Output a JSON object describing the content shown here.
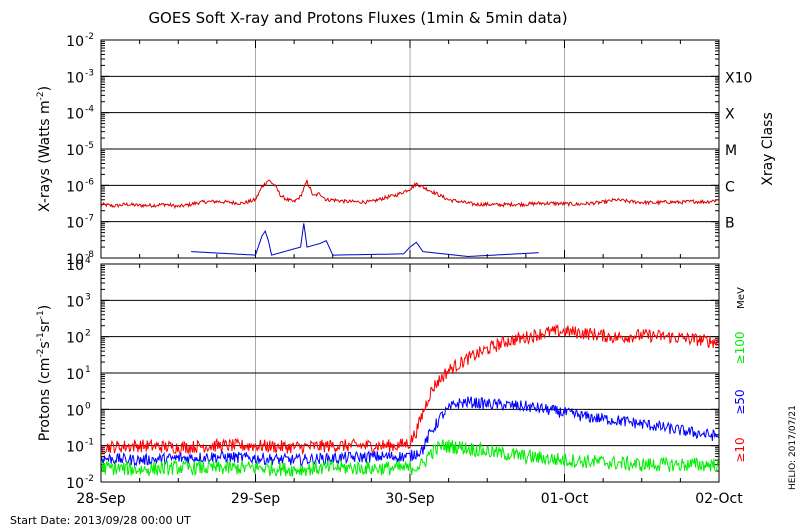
{
  "title": "GOES Soft X-ray and Protons Fluxes   (1min & 5min data)",
  "start_date_label": "Start Date: 2013/09/28 00:00 UT",
  "credit": "HELIO: 2017/07/21",
  "colors": {
    "xray_long": "#dd0000",
    "xray_short": "#0000cc",
    "proton_10": "#ff0000",
    "proton_50": "#0000ff",
    "proton_100": "#00ee00",
    "grid": "#aaaaaa"
  },
  "chart_data": [
    {
      "type": "line",
      "panel": "xray",
      "title": "GOES Soft X-ray and Protons Fluxes   (1min & 5min data)",
      "ylabel_main": "X-rays (Watts m",
      "ylabel_sup": "-2",
      "ylabel_close": ")",
      "yscale": "log",
      "ylim": [
        1e-08,
        0.01
      ],
      "xlim": [
        "2013-09-28",
        "2013-10-02"
      ],
      "xticks": [
        {
          "value": "2013-09-28",
          "label": "28-Sep"
        },
        {
          "value": "2013-09-29",
          "label": "29-Sep"
        },
        {
          "value": "2013-09-30",
          "label": "30-Sep"
        },
        {
          "value": "2013-10-01",
          "label": "01-Oct"
        },
        {
          "value": "2013-10-02",
          "label": "02-Oct"
        }
      ],
      "yticks": [
        {
          "value": 1e-08,
          "base": "10",
          "exp": "-8"
        },
        {
          "value": 1e-07,
          "base": "10",
          "exp": "-7"
        },
        {
          "value": 1e-06,
          "base": "10",
          "exp": "-6"
        },
        {
          "value": 1e-05,
          "base": "10",
          "exp": "-5"
        },
        {
          "value": 0.0001,
          "base": "10",
          "exp": "-4"
        },
        {
          "value": 0.001,
          "base": "10",
          "exp": "-3"
        },
        {
          "value": 0.01,
          "base": "10",
          "exp": "-2"
        }
      ],
      "class_axis_label": "Xray Class",
      "classes": [
        {
          "label": "B",
          "value": 1e-07
        },
        {
          "label": "C",
          "value": 1e-06
        },
        {
          "label": "M",
          "value": 1e-05
        },
        {
          "label": "X",
          "value": 0.0001
        },
        {
          "label": "X10",
          "value": 0.001
        }
      ],
      "series": [
        {
          "color": "#dd0000",
          "x": [
            "2013-09-28T00:00",
            "2013-09-28T02:00",
            "2013-09-28T04:00",
            "2013-09-28T06:00",
            "2013-09-28T08:00",
            "2013-09-28T10:00",
            "2013-09-28T12:00",
            "2013-09-28T14:00",
            "2013-09-28T15:00",
            "2013-09-28T16:00",
            "2013-09-28T18:00",
            "2013-09-28T20:00",
            "2013-09-28T22:00",
            "2013-09-29T00:00",
            "2013-09-29T01:00",
            "2013-09-29T02:00",
            "2013-09-29T03:00",
            "2013-09-29T04:00",
            "2013-09-29T05:00",
            "2013-09-29T06:00",
            "2013-09-29T07:00",
            "2013-09-29T08:00",
            "2013-09-29T09:00",
            "2013-09-29T10:00",
            "2013-09-29T11:00",
            "2013-09-29T12:00",
            "2013-09-29T14:00",
            "2013-09-29T16:00",
            "2013-09-29T18:00",
            "2013-09-29T20:00",
            "2013-09-29T22:00",
            "2013-09-30T00:00",
            "2013-09-30T01:00",
            "2013-09-30T02:00",
            "2013-09-30T04:00",
            "2013-09-30T06:00",
            "2013-09-30T08:00",
            "2013-09-30T10:00",
            "2013-09-30T12:00",
            "2013-09-30T14:00",
            "2013-09-30T16:00",
            "2013-09-30T18:00",
            "2013-09-30T20:00",
            "2013-09-30T22:00",
            "2013-10-01T00:00",
            "2013-10-01T02:00",
            "2013-10-01T04:00",
            "2013-10-01T06:00",
            "2013-10-01T08:00",
            "2013-10-01T10:00",
            "2013-10-01T12:00",
            "2013-10-01T14:00",
            "2013-10-01T16:00",
            "2013-10-01T18:00",
            "2013-10-01T20:00",
            "2013-10-01T22:00",
            "2013-10-02T00:00"
          ],
          "values": [
            3e-07,
            2.7e-07,
            3e-07,
            2.8e-07,
            2.8e-07,
            3e-07,
            2.6e-07,
            3e-07,
            3.3e-07,
            3.5e-07,
            3.6e-07,
            3.4e-07,
            3.2e-07,
            4e-07,
            9e-07,
            1.4e-06,
            1e-06,
            5e-07,
            4e-07,
            3.5e-07,
            5e-07,
            1.3e-06,
            5e-07,
            6e-07,
            4e-07,
            4e-07,
            3.6e-07,
            3.5e-07,
            3.5e-07,
            4.5e-07,
            5.5e-07,
            8e-07,
            1.1e-06,
            9e-07,
            6e-07,
            4e-07,
            3.5e-07,
            3e-07,
            3e-07,
            2.9e-07,
            3e-07,
            3e-07,
            3.2e-07,
            3.2e-07,
            3.1e-07,
            3e-07,
            3.2e-07,
            3.4e-07,
            4e-07,
            3.6e-07,
            3.4e-07,
            3.3e-07,
            3.5e-07,
            3.4e-07,
            3.6e-07,
            3.5e-07,
            4e-07
          ]
        },
        {
          "color": "#0000cc",
          "x": [
            "2013-09-28T14:00",
            "2013-09-29T00:00",
            "2013-09-29T01:00",
            "2013-09-29T01:30",
            "2013-09-29T02:00",
            "2013-09-29T02:30",
            "2013-09-29T07:00",
            "2013-09-29T07:30",
            "2013-09-29T08:00",
            "2013-09-29T10:00",
            "2013-09-29T11:00",
            "2013-09-29T12:00",
            "2013-09-29T23:00",
            "2013-09-30T00:00",
            "2013-09-30T01:00",
            "2013-09-30T02:00",
            "2013-09-30T09:00",
            "2013-09-30T20:00"
          ],
          "values": [
            1.5e-08,
            1.2e-08,
            4e-08,
            5.5e-08,
            3e-08,
            1.2e-08,
            2e-08,
            9e-08,
            2e-08,
            2.5e-08,
            3e-08,
            1.2e-08,
            1.3e-08,
            2e-08,
            2.7e-08,
            1.5e-08,
            1.1e-08,
            1.4e-08
          ]
        }
      ]
    },
    {
      "type": "line",
      "panel": "protons",
      "ylabel_main": "Protons (cm",
      "ylabel_parts": [
        {
          "text": "-2",
          "sup": true
        },
        {
          "text": "s",
          "sup": false
        },
        {
          "text": "-1",
          "sup": true
        },
        {
          "text": "sr",
          "sup": false
        },
        {
          "text": "-1",
          "sup": true
        },
        {
          "text": ")",
          "sup": false
        }
      ],
      "yscale": "log",
      "ylim": [
        0.01,
        10000
      ],
      "xlim": [
        "2013-09-28",
        "2013-10-02"
      ],
      "xticks": [
        {
          "value": "2013-09-28",
          "label": "28-Sep"
        },
        {
          "value": "2013-09-29",
          "label": "29-Sep"
        },
        {
          "value": "2013-09-30",
          "label": "30-Sep"
        },
        {
          "value": "2013-10-01",
          "label": "01-Oct"
        },
        {
          "value": "2013-10-02",
          "label": "02-Oct"
        }
      ],
      "yticks": [
        {
          "value": 0.01,
          "base": "10",
          "exp": "-2"
        },
        {
          "value": 0.1,
          "base": "10",
          "exp": "-1"
        },
        {
          "value": 1,
          "base": "10",
          "exp": "0"
        },
        {
          "value": 10,
          "base": "10",
          "exp": "1"
        },
        {
          "value": 100,
          "base": "10",
          "exp": "2"
        },
        {
          "value": 1000,
          "base": "10",
          "exp": "3"
        },
        {
          "value": 10000,
          "base": "10",
          "exp": "4"
        }
      ],
      "threshold": 10,
      "energy_unit": "MeV",
      "series": [
        {
          "name": "≥10",
          "color": "#ff0000",
          "x": [
            "2013-09-28T00:00",
            "2013-09-28T06:00",
            "2013-09-28T12:00",
            "2013-09-28T18:00",
            "2013-09-29T00:00",
            "2013-09-29T06:00",
            "2013-09-29T12:00",
            "2013-09-29T18:00",
            "2013-09-29T22:00",
            "2013-09-30T00:00",
            "2013-09-30T01:00",
            "2013-09-30T02:00",
            "2013-09-30T03:00",
            "2013-09-30T04:00",
            "2013-09-30T06:00",
            "2013-09-30T09:00",
            "2013-09-30T12:00",
            "2013-09-30T15:00",
            "2013-09-30T18:00",
            "2013-09-30T21:00",
            "2013-10-01T00:00",
            "2013-10-01T04:00",
            "2013-10-01T08:00",
            "2013-10-01T12:00",
            "2013-10-01T16:00",
            "2013-10-01T20:00",
            "2013-10-02T00:00"
          ],
          "values": [
            0.09,
            0.1,
            0.09,
            0.1,
            0.1,
            0.09,
            0.1,
            0.1,
            0.1,
            0.12,
            0.25,
            0.8,
            2.5,
            5,
            12,
            25,
            45,
            75,
            95,
            130,
            140,
            120,
            95,
            110,
            100,
            85,
            70
          ]
        },
        {
          "name": "≥50",
          "color": "#0000ff",
          "x": [
            "2013-09-28T00:00",
            "2013-09-28T06:00",
            "2013-09-28T12:00",
            "2013-09-28T18:00",
            "2013-09-29T00:00",
            "2013-09-29T06:00",
            "2013-09-29T12:00",
            "2013-09-29T18:00",
            "2013-09-30T00:00",
            "2013-09-30T02:00",
            "2013-09-30T03:00",
            "2013-09-30T05:00",
            "2013-09-30T07:00",
            "2013-09-30T09:00",
            "2013-09-30T12:00",
            "2013-09-30T15:00",
            "2013-09-30T18:00",
            "2013-09-30T21:00",
            "2013-10-01T00:00",
            "2013-10-01T04:00",
            "2013-10-01T08:00",
            "2013-10-01T12:00",
            "2013-10-01T16:00",
            "2013-10-01T20:00",
            "2013-10-02T00:00"
          ],
          "values": [
            0.045,
            0.04,
            0.045,
            0.05,
            0.045,
            0.04,
            0.045,
            0.05,
            0.05,
            0.08,
            0.2,
            0.7,
            1.4,
            1.6,
            1.4,
            1.3,
            1.2,
            1.0,
            0.8,
            0.6,
            0.5,
            0.4,
            0.3,
            0.23,
            0.18
          ]
        },
        {
          "name": "≥100",
          "color": "#00ee00",
          "x": [
            "2013-09-28T00:00",
            "2013-09-28T06:00",
            "2013-09-28T12:00",
            "2013-09-28T18:00",
            "2013-09-29T00:00",
            "2013-09-29T06:00",
            "2013-09-29T12:00",
            "2013-09-29T18:00",
            "2013-09-30T00:00",
            "2013-09-30T02:00",
            "2013-09-30T03:00",
            "2013-09-30T05:00",
            "2013-09-30T08:00",
            "2013-09-30T12:00",
            "2013-09-30T18:00",
            "2013-10-01T00:00",
            "2013-10-01T06:00",
            "2013-10-01T12:00",
            "2013-10-01T18:00",
            "2013-10-02T00:00"
          ],
          "values": [
            0.025,
            0.022,
            0.025,
            0.024,
            0.025,
            0.022,
            0.025,
            0.024,
            0.024,
            0.03,
            0.06,
            0.1,
            0.09,
            0.07,
            0.05,
            0.04,
            0.035,
            0.03,
            0.03,
            0.03
          ]
        }
      ]
    }
  ]
}
